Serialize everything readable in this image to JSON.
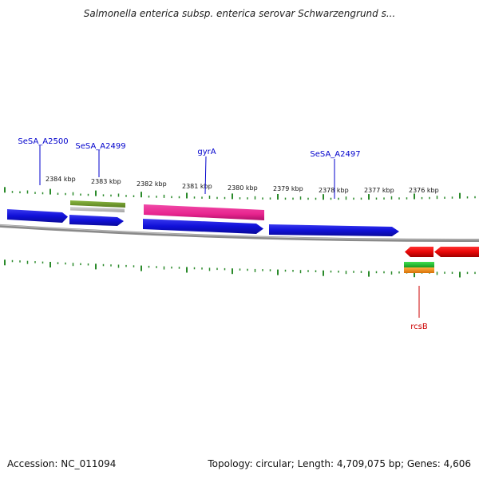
{
  "title": "Salmonella enterica subsp. enterica serovar Schwarzengrund s...",
  "footer": {
    "accession": "Accession: NC_011094",
    "summary": "Topology: circular; Length: 4,709,075 bp; Genes: 4,606"
  },
  "ruler": {
    "ticks": [
      "2384 kbp",
      "2383 kbp",
      "2382 kbp",
      "2381 kbp",
      "2380 kbp",
      "2379 kbp",
      "2378 kbp",
      "2377 kbp",
      "2376 kbp"
    ]
  },
  "gene_labels": [
    {
      "text": "SeSA_A2500",
      "color": "#0000cc"
    },
    {
      "text": "SeSA_A2499",
      "color": "#0000cc"
    },
    {
      "text": "gyrA",
      "color": "#0000cc"
    },
    {
      "text": "SeSA_A2497",
      "color": "#0000cc"
    },
    {
      "text": "rcsB",
      "color": "#cc0000"
    }
  ],
  "colors": {
    "forward_gene": "#1a1adc",
    "reverse_gene": "#e80808",
    "rna_feature": "#e8258f",
    "green_feature": "#6f9a2c",
    "green_bright": "#22c030",
    "orange_feature": "#f5941a",
    "grey_feature": "#b8b8b8",
    "tick": "#2a8a2a",
    "backbone": "#8a8a8a"
  }
}
